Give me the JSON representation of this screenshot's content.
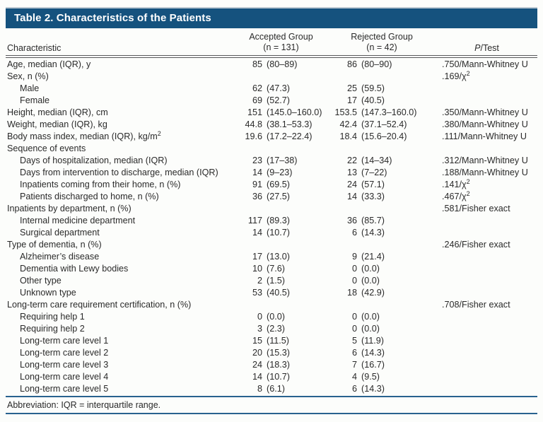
{
  "title": "Table 2. Characteristics of the Patients",
  "columns": {
    "characteristic": "Characteristic",
    "accepted_line1": "Accepted Group",
    "accepted_line2": "(n = 131)",
    "rejected_line1": "Rejected Group",
    "rejected_line2": "(n = 42)",
    "p_italic": "P",
    "p_rest": "/Test"
  },
  "rows": [
    {
      "label": "Age, median (IQR), y",
      "indent": 0,
      "acc_n": "85",
      "acc_p": "(80–89)",
      "rej_n": "86",
      "rej_p": "(80–90)",
      "p": ".750/Mann-Whitney U"
    },
    {
      "label": "Sex, n (%)",
      "indent": 0,
      "acc_n": "",
      "acc_p": "",
      "rej_n": "",
      "rej_p": "",
      "p": ".169/χ²"
    },
    {
      "label": "Male",
      "indent": 1,
      "acc_n": "62",
      "acc_p": "(47.3)",
      "rej_n": "25",
      "rej_p": "(59.5)",
      "p": ""
    },
    {
      "label": "Female",
      "indent": 1,
      "acc_n": "69",
      "acc_p": "(52.7)",
      "rej_n": "17",
      "rej_p": "(40.5)",
      "p": ""
    },
    {
      "label": "Height, median (IQR), cm",
      "indent": 0,
      "acc_n": "151",
      "acc_p": "(145.0–160.0)",
      "rej_n": "153.5",
      "rej_p": "(147.3–160.0)",
      "p": ".350/Mann-Whitney U"
    },
    {
      "label": "Weight, median (IQR), kg",
      "indent": 0,
      "acc_n": "44.8",
      "acc_p": "(38.1–53.3)",
      "rej_n": "42.4",
      "rej_p": "(37.1–52.4)",
      "p": ".380/Mann-Whitney U"
    },
    {
      "label": "Body mass index, median (IQR), kg/m²",
      "indent": 0,
      "acc_n": "19.6",
      "acc_p": "(17.2–22.4)",
      "rej_n": "18.4",
      "rej_p": "(15.6–20.4)",
      "p": ".111/Mann-Whitney U"
    },
    {
      "label": "Sequence of events",
      "indent": 0,
      "acc_n": "",
      "acc_p": "",
      "rej_n": "",
      "rej_p": "",
      "p": ""
    },
    {
      "label": "Days of hospitalization, median (IQR)",
      "indent": 1,
      "acc_n": "23",
      "acc_p": "(17–38)",
      "rej_n": "22",
      "rej_p": "(14–34)",
      "p": ".312/Mann-Whitney U"
    },
    {
      "label": "Days from intervention to discharge, median (IQR)",
      "indent": 1,
      "acc_n": "14",
      "acc_p": "(9–23)",
      "rej_n": "13",
      "rej_p": "(7–22)",
      "p": ".188/Mann-Whitney U"
    },
    {
      "label": "Inpatients coming from their home, n (%)",
      "indent": 1,
      "acc_n": "91",
      "acc_p": "(69.5)",
      "rej_n": "24",
      "rej_p": "(57.1)",
      "p": ".141/χ²"
    },
    {
      "label": "Patients discharged to home, n (%)",
      "indent": 1,
      "acc_n": "36",
      "acc_p": "(27.5)",
      "rej_n": "14",
      "rej_p": "(33.3)",
      "p": ".467/χ²"
    },
    {
      "label": "Inpatients by department, n (%)",
      "indent": 0,
      "acc_n": "",
      "acc_p": "",
      "rej_n": "",
      "rej_p": "",
      "p": ".581/Fisher exact"
    },
    {
      "label": "Internal medicine department",
      "indent": 1,
      "acc_n": "117",
      "acc_p": "(89.3)",
      "rej_n": "36",
      "rej_p": "(85.7)",
      "p": ""
    },
    {
      "label": "Surgical department",
      "indent": 1,
      "acc_n": "14",
      "acc_p": "(10.7)",
      "rej_n": "6",
      "rej_p": "(14.3)",
      "p": ""
    },
    {
      "label": "Type of dementia, n (%)",
      "indent": 0,
      "acc_n": "",
      "acc_p": "",
      "rej_n": "",
      "rej_p": "",
      "p": ".246/Fisher exact"
    },
    {
      "label": "Alzheimer’s disease",
      "indent": 1,
      "acc_n": "17",
      "acc_p": "(13.0)",
      "rej_n": "9",
      "rej_p": "(21.4)",
      "p": ""
    },
    {
      "label": "Dementia with Lewy bodies",
      "indent": 1,
      "acc_n": "10",
      "acc_p": "(7.6)",
      "rej_n": "0",
      "rej_p": "(0.0)",
      "p": ""
    },
    {
      "label": "Other type",
      "indent": 1,
      "acc_n": "2",
      "acc_p": "(1.5)",
      "rej_n": "0",
      "rej_p": "(0.0)",
      "p": ""
    },
    {
      "label": "Unknown type",
      "indent": 1,
      "acc_n": "53",
      "acc_p": "(40.5)",
      "rej_n": "18",
      "rej_p": "(42.9)",
      "p": ""
    },
    {
      "label": "Long-term care requirement certification, n (%)",
      "indent": 0,
      "acc_n": "",
      "acc_p": "",
      "rej_n": "",
      "rej_p": "",
      "p": ".708/Fisher exact"
    },
    {
      "label": "Requiring help 1",
      "indent": 1,
      "acc_n": "0",
      "acc_p": "(0.0)",
      "rej_n": "0",
      "rej_p": "(0.0)",
      "p": ""
    },
    {
      "label": "Requiring help 2",
      "indent": 1,
      "acc_n": "3",
      "acc_p": "(2.3)",
      "rej_n": "0",
      "rej_p": "(0.0)",
      "p": ""
    },
    {
      "label": "Long-term care level 1",
      "indent": 1,
      "acc_n": "15",
      "acc_p": "(11.5)",
      "rej_n": "5",
      "rej_p": "(11.9)",
      "p": ""
    },
    {
      "label": "Long-term care level 2",
      "indent": 1,
      "acc_n": "20",
      "acc_p": "(15.3)",
      "rej_n": "6",
      "rej_p": "(14.3)",
      "p": ""
    },
    {
      "label": "Long-term care level 3",
      "indent": 1,
      "acc_n": "24",
      "acc_p": "(18.3)",
      "rej_n": "7",
      "rej_p": "(16.7)",
      "p": ""
    },
    {
      "label": "Long-term care level 4",
      "indent": 1,
      "acc_n": "14",
      "acc_p": "(10.7)",
      "rej_n": "4",
      "rej_p": "(9.5)",
      "p": ""
    },
    {
      "label": "Long-term care level 5",
      "indent": 1,
      "acc_n": "8",
      "acc_p": "(6.1)",
      "rej_n": "6",
      "rej_p": "(14.3)",
      "p": ""
    }
  ],
  "footnote": "Abbreviation: IQR = interquartile range.",
  "colors": {
    "title_bar_bg": "#15527e",
    "title_bar_top_edge": "#bdc9d3",
    "header_rule": "#58595b",
    "footnote_rule": "#29628f",
    "text": "#2a2a2a"
  }
}
